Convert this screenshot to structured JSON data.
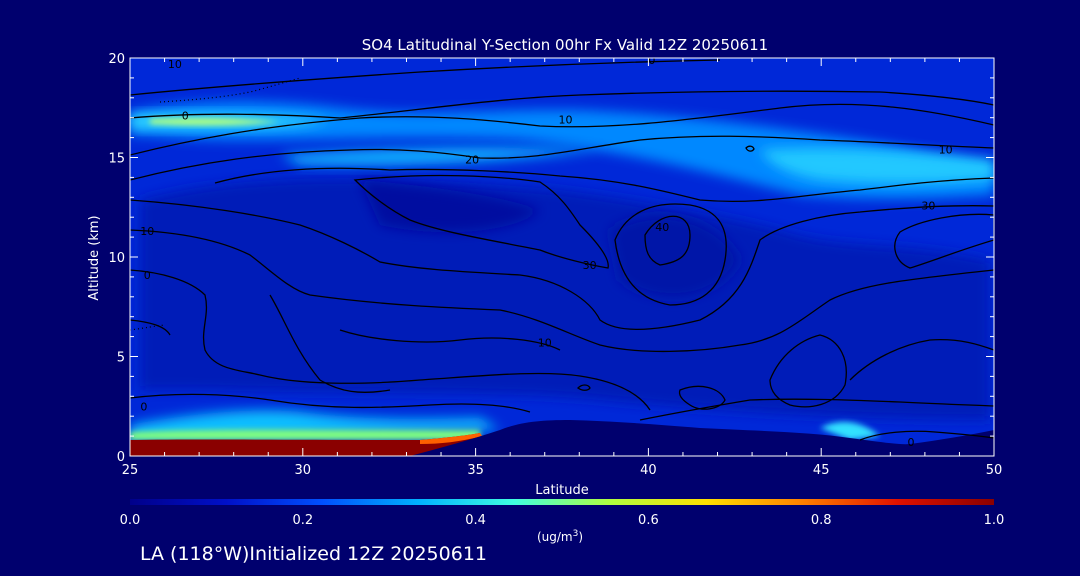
{
  "chart_data": {
    "type": "heatmap",
    "title": "SO4 Latitudinal Y-Section 00hr  Fx Valid 12Z 20250611",
    "xlabel": "Latitude",
    "ylabel": "Altitude (km)",
    "xlim": [
      25,
      50
    ],
    "ylim": [
      0,
      20
    ],
    "x_ticks": [
      25,
      30,
      35,
      40,
      45,
      50
    ],
    "x_tick_labels": [
      "25",
      "30",
      "35",
      "40",
      "45",
      "50"
    ],
    "y_ticks": [
      0,
      5,
      10,
      15,
      20
    ],
    "y_tick_labels": [
      "0",
      "5",
      "10",
      "15",
      "20"
    ],
    "colorbar": {
      "min": 0.0,
      "max": 1.0,
      "ticks": [
        0.0,
        0.2,
        0.4,
        0.6,
        0.8,
        1.0
      ],
      "tick_labels": [
        "0.0",
        "0.2",
        "0.4",
        "0.6",
        "0.8",
        "1.0"
      ],
      "unit_label": "(ug/m",
      "unit_superscript": "3",
      "unit_close": ")",
      "colors": [
        "#00008a",
        "#0010c8",
        "#0050ff",
        "#00b0ff",
        "#40ffe0",
        "#b0ff40",
        "#ffe000",
        "#ff8000",
        "#e01000",
        "#8a0000"
      ]
    },
    "contour_labels": [
      {
        "text": "10",
        "x": 26.3,
        "y": 19.7
      },
      {
        "text": "0",
        "x": 40.1,
        "y": 19.9
      },
      {
        "text": "0",
        "x": 26.6,
        "y": 17.1
      },
      {
        "text": "10",
        "x": 37.6,
        "y": 16.9
      },
      {
        "text": "20",
        "x": 34.9,
        "y": 14.9
      },
      {
        "text": "10",
        "x": 48.6,
        "y": 15.4
      },
      {
        "text": "30",
        "x": 48.1,
        "y": 12.6
      },
      {
        "text": "10",
        "x": 25.5,
        "y": 11.3
      },
      {
        "text": "40",
        "x": 40.4,
        "y": 11.5
      },
      {
        "text": "30",
        "x": 38.3,
        "y": 9.6
      },
      {
        "text": "0",
        "x": 25.5,
        "y": 9.1
      },
      {
        "text": "10",
        "x": 37.0,
        "y": 5.7
      },
      {
        "text": "0",
        "x": 25.4,
        "y": 2.5
      },
      {
        "text": "0",
        "x": 47.6,
        "y": 0.7
      }
    ],
    "fields": [
      {
        "value": 1.0,
        "region": "surface layer",
        "lat": [
          25,
          34
        ],
        "alt": [
          0.5,
          1.2
        ]
      },
      {
        "value": 0.55,
        "region": "upper layer",
        "lat": [
          25,
          31
        ],
        "alt": [
          16.3,
          17.3
        ]
      },
      {
        "value": 0.35,
        "region": "upper layer",
        "lat": [
          40,
          50
        ],
        "alt": [
          13.8,
          16.6
        ]
      },
      {
        "value": 0.25,
        "region": "mid layer",
        "lat": [
          25,
          50
        ],
        "alt": [
          2,
          12
        ]
      }
    ],
    "grid": false,
    "legend": "colorbar-bottom"
  },
  "footer_text": "LA (118°W)Initialized 12Z 20250611"
}
